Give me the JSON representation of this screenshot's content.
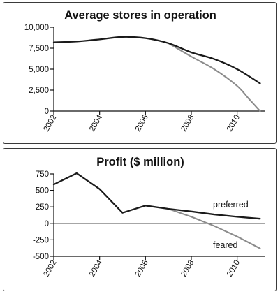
{
  "chart_data": [
    {
      "type": "line",
      "title": "Average stores in operation",
      "xlabel": "",
      "ylabel": "",
      "xlim": [
        2002,
        2011.2
      ],
      "ylim": [
        0,
        10000
      ],
      "x_ticks": [
        2002,
        2004,
        2006,
        2008,
        2010
      ],
      "y_ticks": [
        0,
        2500,
        5000,
        7500,
        10000
      ],
      "y_tick_labels": [
        "0",
        "2,500",
        "5,000",
        "7,500",
        "10,000"
      ],
      "grid": false,
      "series": [
        {
          "color": "#1a1a1a",
          "x": [
            2002,
            2003,
            2004,
            2005,
            2006,
            2007,
            2008,
            2009,
            2010,
            2011
          ],
          "y": [
            8200,
            8300,
            8550,
            8850,
            8700,
            8100,
            7000,
            6200,
            5000,
            3300
          ]
        },
        {
          "color": "#8c8c8c",
          "x": [
            2007,
            2008,
            2009,
            2010,
            2010.5,
            2011
          ],
          "y": [
            8100,
            6500,
            5000,
            3000,
            1500,
            0
          ]
        }
      ]
    },
    {
      "type": "line",
      "title": "Profit ($ million)",
      "xlabel": "",
      "ylabel": "",
      "xlim": [
        2002,
        2011.2
      ],
      "ylim": [
        -500,
        750
      ],
      "x_ticks": [
        2002,
        2004,
        2006,
        2008,
        2010
      ],
      "y_ticks": [
        -500,
        -250,
        0,
        250,
        500,
        750
      ],
      "y_tick_labels": [
        "-500",
        "-250",
        "0",
        "250",
        "500",
        "750"
      ],
      "zero_line": true,
      "grid": false,
      "series": [
        {
          "name": "preferred",
          "color": "#1a1a1a",
          "x": [
            2002,
            2003,
            2004,
            2005,
            2006,
            2007,
            2008,
            2009,
            2010,
            2011
          ],
          "y": [
            590,
            760,
            520,
            160,
            270,
            220,
            180,
            135,
            100,
            70
          ]
        },
        {
          "name": "feared",
          "color": "#8c8c8c",
          "x": [
            2007,
            2008,
            2009,
            2010,
            2011
          ],
          "y": [
            220,
            100,
            -40,
            -200,
            -380
          ]
        }
      ]
    }
  ]
}
